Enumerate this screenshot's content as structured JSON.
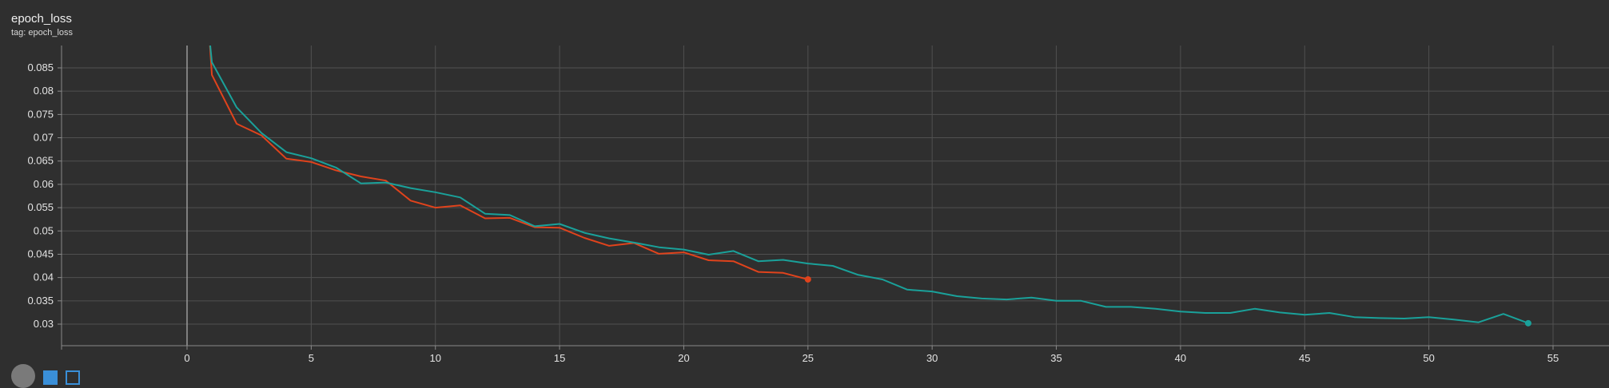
{
  "header": {
    "title": "epoch_loss",
    "tag": "tag: epoch_loss"
  },
  "colors": {
    "background": "#2f2f2f",
    "grid": "#505050",
    "axis": "#8a8a8a",
    "orange_series": "#e0431c",
    "teal_series": "#1aa19a"
  },
  "chart_data": {
    "type": "line",
    "title": "epoch_loss",
    "xlabel": "",
    "ylabel": "",
    "xlim": [
      -5,
      56
    ],
    "ylim": [
      0.0265,
      0.0915
    ],
    "x_ticks": [
      0,
      5,
      10,
      15,
      20,
      25,
      30,
      35,
      40,
      45,
      50,
      55
    ],
    "y_ticks": [
      0.03,
      0.035,
      0.04,
      0.045,
      0.05,
      0.055,
      0.06,
      0.065,
      0.07,
      0.075,
      0.08,
      0.085
    ],
    "y_tick_labels": [
      "0.03",
      "0.035",
      "0.04",
      "0.045",
      "0.05",
      "0.055",
      "0.06",
      "0.065",
      "0.07",
      "0.075",
      "0.08",
      "0.085"
    ],
    "grid": true,
    "series": [
      {
        "color": "#e0431c",
        "x": [
          0.9,
          1,
          2,
          3,
          4,
          5,
          6,
          7,
          8,
          9,
          10,
          11,
          12,
          13,
          14,
          15,
          16,
          17,
          18,
          19,
          20,
          21,
          22,
          23,
          24,
          25
        ],
        "y": [
          0.0915,
          0.0835,
          0.073,
          0.0705,
          0.0655,
          0.0648,
          0.063,
          0.0617,
          0.0608,
          0.0565,
          0.055,
          0.0555,
          0.0527,
          0.0528,
          0.0508,
          0.0507,
          0.0485,
          0.0468,
          0.0474,
          0.0451,
          0.0454,
          0.0437,
          0.0435,
          0.0412,
          0.041,
          0.0396
        ]
      },
      {
        "color": "#1aa19a",
        "x": [
          0.9,
          1,
          2,
          3,
          4,
          5,
          6,
          7,
          8,
          9,
          10,
          11,
          12,
          13,
          14,
          15,
          16,
          17,
          18,
          19,
          20,
          21,
          22,
          23,
          24,
          25,
          26,
          27,
          28,
          29,
          30,
          31,
          32,
          33,
          34,
          35,
          36,
          37,
          38,
          39,
          40,
          41,
          42,
          43,
          44,
          45,
          46,
          47,
          48,
          49,
          50,
          51,
          52,
          53,
          54
        ],
        "y": [
          0.0915,
          0.0862,
          0.0765,
          0.071,
          0.0669,
          0.0656,
          0.0636,
          0.0602,
          0.0604,
          0.0592,
          0.0583,
          0.0572,
          0.0537,
          0.0534,
          0.051,
          0.0515,
          0.0496,
          0.0484,
          0.0475,
          0.0465,
          0.046,
          0.0449,
          0.0457,
          0.0435,
          0.0438,
          0.043,
          0.0425,
          0.0406,
          0.0396,
          0.0374,
          0.037,
          0.036,
          0.0355,
          0.0353,
          0.0357,
          0.035,
          0.035,
          0.0337,
          0.0337,
          0.0333,
          0.0327,
          0.0324,
          0.0324,
          0.0333,
          0.0325,
          0.032,
          0.0324,
          0.0315,
          0.0313,
          0.0312,
          0.0315,
          0.031,
          0.0304,
          0.0322,
          0.0302
        ]
      }
    ]
  }
}
